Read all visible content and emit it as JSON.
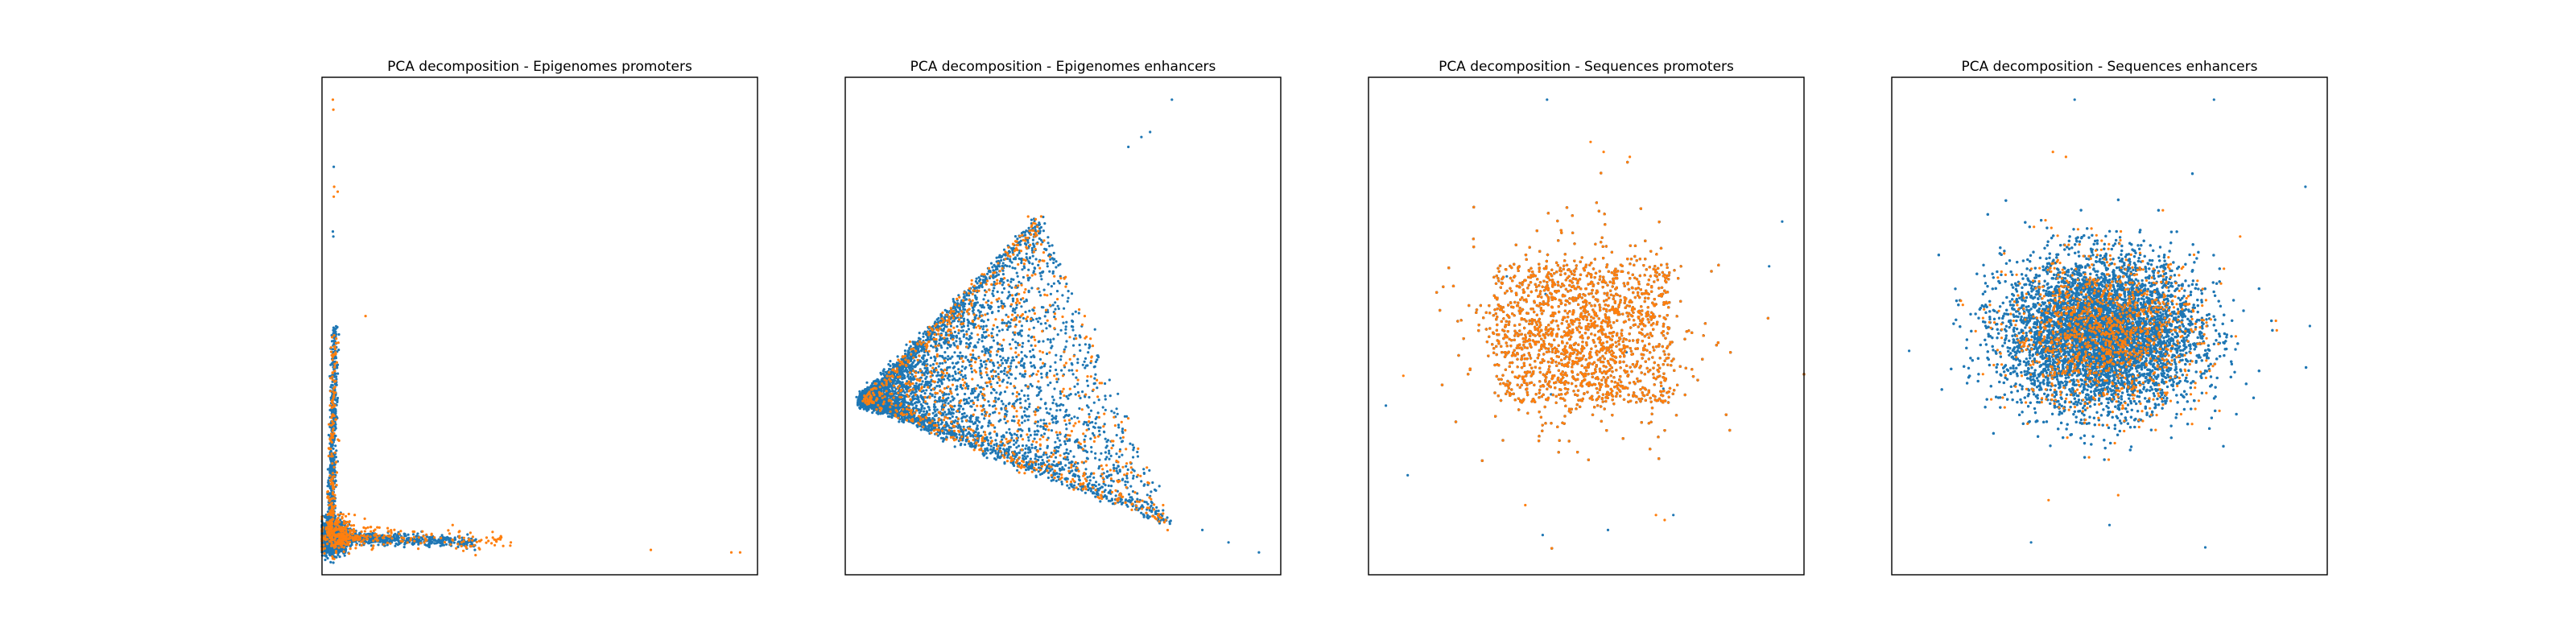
{
  "figure": {
    "background": "#ffffff",
    "series_colors": [
      "#1f77b4",
      "#ff7f0e"
    ]
  },
  "chart_data": [
    {
      "type": "scatter",
      "title": "PCA decomposition - Epigenomes promoters",
      "xlabel": "",
      "ylabel": "",
      "xlim": [
        0,
        100
      ],
      "ylim": [
        0,
        100
      ],
      "grid": false,
      "ticks": false,
      "series": [
        {
          "color": "#1f77b4",
          "shape": "L",
          "point_count": 4000,
          "clusters": [
            {
              "cx": 2.5,
              "cy": 7.5,
              "sx": 1.5,
              "sy": 1.5,
              "n": 1500
            },
            {
              "x": [
                2,
                3
              ],
              "y": [
                6,
                50
              ],
              "jitter": 0.4,
              "n": 700
            },
            {
              "x": [
                3,
                35
              ],
              "y": [
                7.5,
                6.5
              ],
              "jitter": 0.6,
              "n": 700
            }
          ],
          "sample_points": [
            [
              2.6,
              68
            ],
            [
              2.7,
              82
            ],
            [
              2.5,
              69
            ],
            [
              3.5,
              35
            ]
          ]
        },
        {
          "color": "#ff7f0e",
          "shape": "L",
          "point_count": 600,
          "clusters": [
            {
              "cx": 3.5,
              "cy": 8,
              "sx": 2,
              "sy": 2,
              "n": 200
            },
            {
              "x": [
                2,
                3
              ],
              "y": [
                8,
                48
              ],
              "jitter": 0.5,
              "n": 180
            },
            {
              "x": [
                4,
                42
              ],
              "y": [
                8,
                6.5
              ],
              "jitter": 1,
              "n": 200
            }
          ],
          "sample_points": [
            [
              2.5,
              95.5
            ],
            [
              2.6,
              93.5
            ],
            [
              2.8,
              78
            ],
            [
              2.7,
              76
            ],
            [
              3.6,
              77
            ],
            [
              10,
              52
            ],
            [
              75.5,
              5
            ],
            [
              94,
              4.5
            ],
            [
              96,
              4.5
            ],
            [
              30,
              10
            ]
          ]
        }
      ]
    },
    {
      "type": "scatter",
      "title": "PCA decomposition - Epigenomes enhancers",
      "xlabel": "",
      "ylabel": "",
      "xlim": [
        0,
        100
      ],
      "ylim": [
        0,
        100
      ],
      "grid": false,
      "ticks": false,
      "series": [
        {
          "color": "#1f77b4",
          "shape": "wedge",
          "point_count": 5000,
          "clusters": [
            {
              "apex": [
                4,
                35
              ],
              "upper_end": [
                45,
                72
              ],
              "lower_end": [
                75,
                10
              ],
              "n": 4500
            }
          ],
          "sample_points": [
            [
              65,
              86
            ],
            [
              68,
              88
            ],
            [
              70,
              89
            ],
            [
              75,
              95.5
            ],
            [
              82,
              9
            ],
            [
              88,
              6.5
            ],
            [
              95,
              4.5
            ],
            [
              72,
              12
            ]
          ]
        },
        {
          "color": "#ff7f0e",
          "shape": "wedge",
          "point_count": 900,
          "clusters": [
            {
              "apex": [
                4,
                35
              ],
              "upper_end": [
                45,
                72
              ],
              "lower_end": [
                75,
                10
              ],
              "n": 900,
              "bias_inner": true
            }
          ],
          "sample_points": [
            [
              42,
              72
            ],
            [
              48,
              60
            ],
            [
              55,
              52
            ],
            [
              50,
              40
            ],
            [
              60,
              22
            ],
            [
              62,
              30
            ],
            [
              73,
              14
            ]
          ]
        }
      ]
    },
    {
      "type": "scatter",
      "title": "PCA decomposition - Sequences promoters",
      "xlabel": "",
      "ylabel": "",
      "xlim": [
        0,
        100
      ],
      "ylim": [
        0,
        100
      ],
      "grid": false,
      "ticks": false,
      "series": [
        {
          "color": "#1f77b4",
          "shape": "rect-cloud",
          "point_count": 16000,
          "clusters": [
            {
              "cx": 49,
              "cy": 48.5,
              "sx": 12,
              "sy": 9,
              "n": 16000
            }
          ],
          "sample_points": [
            [
              41,
              95.5
            ],
            [
              95,
              71
            ],
            [
              4,
              34
            ],
            [
              9,
              20
            ],
            [
              40,
              8
            ],
            [
              55,
              9
            ],
            [
              70,
              12
            ],
            [
              92,
              62
            ]
          ]
        },
        {
          "color": "#ff7f0e",
          "shape": "rect-cloud",
          "point_count": 3500,
          "clusters": [
            {
              "cx": 49,
              "cy": 48.5,
              "sx": 12,
              "sy": 9,
              "n": 3500
            }
          ],
          "sample_points": [
            [
              51,
              87
            ],
            [
              54,
              85
            ],
            [
              66,
              12
            ],
            [
              68,
              11
            ],
            [
              36,
              14
            ],
            [
              8,
              40
            ],
            [
              60,
              84
            ]
          ]
        }
      ]
    },
    {
      "type": "scatter",
      "title": "PCA decomposition - Sequences enhancers",
      "xlabel": "",
      "ylabel": "",
      "xlim": [
        0,
        100
      ],
      "ylim": [
        0,
        100
      ],
      "grid": false,
      "ticks": false,
      "series": [
        {
          "color": "#1f77b4",
          "shape": "ellipse-cloud",
          "point_count": 16000,
          "clusters": [
            {
              "cx": 48,
              "cy": 48.5,
              "sx": 11,
              "sy": 7.5,
              "n": 16000
            }
          ],
          "sample_points": [
            [
              42,
              95.5
            ],
            [
              74,
              95.5
            ],
            [
              95,
              78
            ],
            [
              32,
              6.5
            ],
            [
              72,
              5.5
            ],
            [
              4,
              45
            ],
            [
              96,
              50
            ],
            [
              50,
              10
            ]
          ]
        },
        {
          "color": "#ff7f0e",
          "shape": "ellipse-cloud",
          "point_count": 1200,
          "clusters": [
            {
              "cx": 49,
              "cy": 48.5,
              "sx": 11,
              "sy": 7.5,
              "n": 1200
            }
          ],
          "sample_points": [
            [
              37,
              85
            ],
            [
              40,
              84
            ],
            [
              36,
              15
            ],
            [
              52,
              16
            ],
            [
              80,
              68
            ]
          ]
        }
      ]
    }
  ]
}
